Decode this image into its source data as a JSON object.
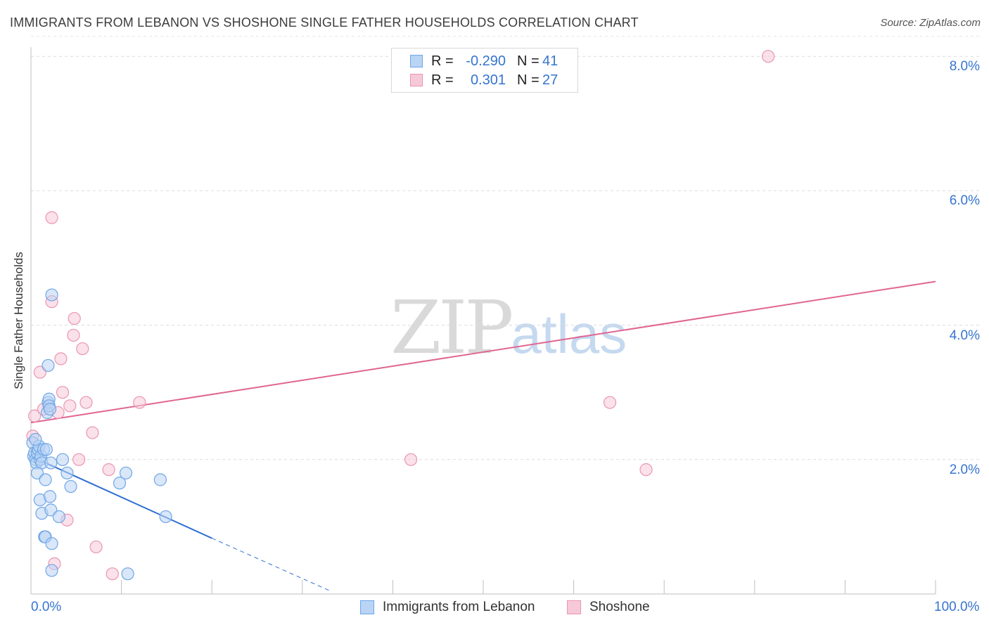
{
  "title": "IMMIGRANTS FROM LEBANON VS SHOSHONE SINGLE FATHER HOUSEHOLDS CORRELATION CHART",
  "source": "Source: ZipAtlas.com",
  "watermark": {
    "zip": "ZIP",
    "atlas": "atlas"
  },
  "colors": {
    "blue": "#6ea6e6",
    "blue_fill": "#b9d4f4",
    "blue_line": "#2f6fd2",
    "pink": "#ea96b2",
    "pink_fill": "#f6c9d8",
    "pink_line": "#e06591",
    "tick_text": "#3674cf"
  },
  "stats": [
    {
      "r_label": "R =",
      "r_value": "-0.290",
      "n_label": "N =",
      "n_value": "41"
    },
    {
      "r_label": "R =",
      "r_value": "0.301",
      "n_label": "N =",
      "n_value": "27"
    }
  ],
  "legend": [
    "Immigrants from Lebanon",
    "Shoshone"
  ],
  "chart_data": {
    "type": "scatter",
    "title": "IMMIGRANTS FROM LEBANON VS SHOSHONE SINGLE FATHER HOUSEHOLDS CORRELATION CHART",
    "xlabel": "",
    "ylabel": "Single Father Households",
    "xlim": [
      0,
      100
    ],
    "ylim": [
      0,
      8.3
    ],
    "x_tick_labels": [
      "0.0%",
      "100.0%"
    ],
    "y_ticks": [
      2,
      4,
      6,
      8
    ],
    "y_tick_labels": [
      "2.0%",
      "4.0%",
      "6.0%",
      "8.0%"
    ],
    "grid": true,
    "series": [
      {
        "name": "Immigrants from Lebanon",
        "points": [
          [
            0.2,
            2.25
          ],
          [
            0.3,
            2.05
          ],
          [
            0.4,
            2.1
          ],
          [
            0.5,
            2.0
          ],
          [
            0.6,
            1.95
          ],
          [
            0.7,
            2.1
          ],
          [
            0.8,
            2.15
          ],
          [
            0.9,
            2.2
          ],
          [
            1.0,
            2.0
          ],
          [
            1.1,
            2.05
          ],
          [
            1.2,
            1.95
          ],
          [
            0.7,
            1.8
          ],
          [
            1.4,
            2.15
          ],
          [
            1.6,
            1.7
          ],
          [
            1.0,
            1.4
          ],
          [
            1.2,
            1.2
          ],
          [
            1.5,
            0.85
          ],
          [
            1.6,
            0.85
          ],
          [
            1.8,
            2.7
          ],
          [
            1.9,
            2.85
          ],
          [
            2.0,
            2.9
          ],
          [
            2.0,
            2.8
          ],
          [
            2.1,
            2.75
          ],
          [
            1.9,
            3.4
          ],
          [
            2.2,
            1.25
          ],
          [
            2.1,
            1.45
          ],
          [
            2.2,
            1.95
          ],
          [
            2.3,
            0.75
          ],
          [
            2.3,
            0.35
          ],
          [
            2.3,
            4.45
          ],
          [
            3.1,
            1.15
          ],
          [
            3.5,
            2.0
          ],
          [
            4.0,
            1.8
          ],
          [
            4.4,
            1.6
          ],
          [
            9.8,
            1.65
          ],
          [
            10.5,
            1.8
          ],
          [
            14.3,
            1.7
          ],
          [
            14.9,
            1.15
          ],
          [
            10.7,
            0.3
          ],
          [
            1.7,
            2.15
          ],
          [
            0.5,
            2.3
          ]
        ],
        "trend": {
          "x": [
            0,
            20
          ],
          "y": [
            2.05,
            0.83
          ]
        },
        "trend_extension": {
          "x": [
            20,
            33
          ],
          "y": [
            0.83,
            0.05
          ]
        }
      },
      {
        "name": "Shoshone",
        "points": [
          [
            0.2,
            2.35
          ],
          [
            0.4,
            2.65
          ],
          [
            1.0,
            3.3
          ],
          [
            1.4,
            2.75
          ],
          [
            2.0,
            2.8
          ],
          [
            2.3,
            4.35
          ],
          [
            2.3,
            5.6
          ],
          [
            3.0,
            2.7
          ],
          [
            3.3,
            3.5
          ],
          [
            3.5,
            3.0
          ],
          [
            4.0,
            1.1
          ],
          [
            4.3,
            2.8
          ],
          [
            4.8,
            4.1
          ],
          [
            4.7,
            3.85
          ],
          [
            5.3,
            2.0
          ],
          [
            5.7,
            3.65
          ],
          [
            6.1,
            2.85
          ],
          [
            6.8,
            2.4
          ],
          [
            7.2,
            0.7
          ],
          [
            8.6,
            1.85
          ],
          [
            9.0,
            0.3
          ],
          [
            12.0,
            2.85
          ],
          [
            2.6,
            0.45
          ],
          [
            42.0,
            2.0
          ],
          [
            64.0,
            2.85
          ],
          [
            68.0,
            1.85
          ],
          [
            81.5,
            8.0
          ]
        ],
        "trend": {
          "x": [
            0,
            100
          ],
          "y": [
            2.55,
            4.65
          ]
        }
      }
    ]
  }
}
